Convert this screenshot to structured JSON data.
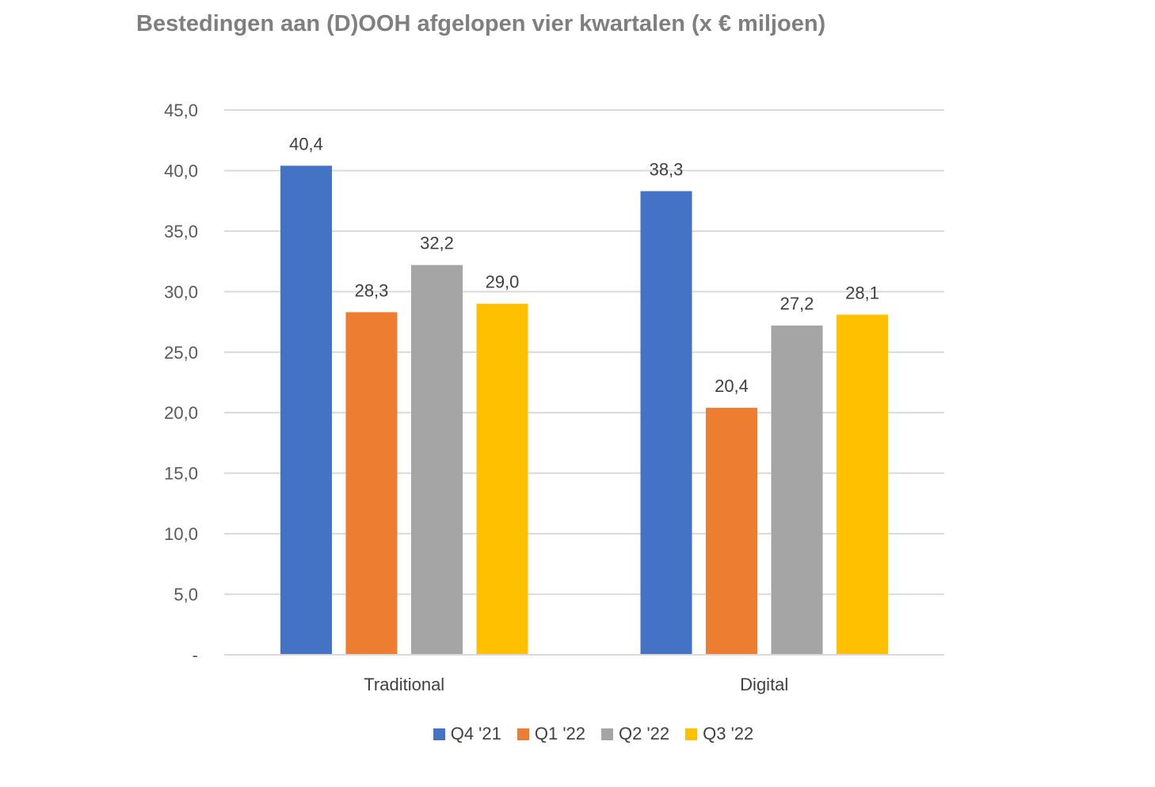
{
  "chart_data": {
    "type": "bar",
    "title": "Bestedingen aan (D)OOH afgelopen vier kwartalen (x € miljoen)",
    "categories": [
      "Traditional",
      "Digital"
    ],
    "series": [
      {
        "name": "Q4 '21",
        "values": [
          40.4,
          38.3
        ],
        "labels": [
          "40,4",
          "38,3"
        ],
        "color": "#4472c4"
      },
      {
        "name": "Q1 '22",
        "values": [
          28.3,
          20.4
        ],
        "labels": [
          "28,3",
          "20,4"
        ],
        "color": "#ed7d31"
      },
      {
        "name": "Q2 '22",
        "values": [
          32.2,
          27.2
        ],
        "labels": [
          "32,2",
          "27,2"
        ],
        "color": "#a5a5a5"
      },
      {
        "name": "Q3 '22",
        "values": [
          29.0,
          28.1
        ],
        "labels": [
          "29,0",
          "28,1"
        ],
        "color": "#ffc000"
      }
    ],
    "ylim": [
      0,
      45
    ],
    "yticks": [
      0,
      5,
      10,
      15,
      20,
      25,
      30,
      35,
      40,
      45
    ],
    "ytick_labels": [
      "-",
      "5,0",
      "10,0",
      "15,0",
      "20,0",
      "25,0",
      "30,0",
      "35,0",
      "40,0",
      "45,0"
    ],
    "grid": true,
    "legend_position": "bottom"
  }
}
